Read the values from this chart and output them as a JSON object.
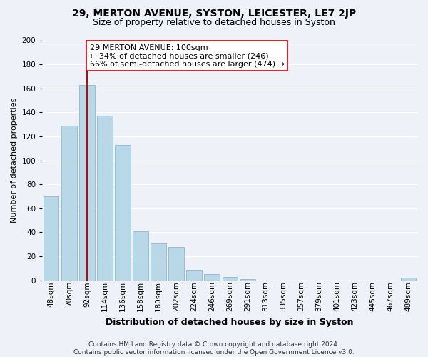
{
  "title": "29, MERTON AVENUE, SYSTON, LEICESTER, LE7 2JP",
  "subtitle": "Size of property relative to detached houses in Syston",
  "xlabel": "Distribution of detached houses by size in Syston",
  "ylabel": "Number of detached properties",
  "bar_labels": [
    "48sqm",
    "70sqm",
    "92sqm",
    "114sqm",
    "136sqm",
    "158sqm",
    "180sqm",
    "202sqm",
    "224sqm",
    "246sqm",
    "269sqm",
    "291sqm",
    "313sqm",
    "335sqm",
    "357sqm",
    "379sqm",
    "401sqm",
    "423sqm",
    "445sqm",
    "467sqm",
    "489sqm"
  ],
  "bar_values": [
    70,
    129,
    163,
    137,
    113,
    41,
    31,
    28,
    9,
    5,
    3,
    1,
    0,
    0,
    0,
    0,
    0,
    0,
    0,
    0,
    2
  ],
  "bar_color": "#b8d8e8",
  "bar_edge_color": "#8ab8ce",
  "vline_x_index": 2,
  "vline_color": "#cc0000",
  "annotation_line1": "29 MERTON AVENUE: 100sqm",
  "annotation_line2": "← 34% of detached houses are smaller (246)",
  "annotation_line3": "66% of semi-detached houses are larger (474) →",
  "ylim": [
    0,
    200
  ],
  "yticks": [
    0,
    20,
    40,
    60,
    80,
    100,
    120,
    140,
    160,
    180,
    200
  ],
  "footer_line1": "Contains HM Land Registry data © Crown copyright and database right 2024.",
  "footer_line2": "Contains public sector information licensed under the Open Government Licence v3.0.",
  "background_color": "#eef2f8",
  "grid_color": "#ffffff",
  "title_fontsize": 10,
  "subtitle_fontsize": 9,
  "xlabel_fontsize": 9,
  "ylabel_fontsize": 8,
  "tick_fontsize": 7.5,
  "annotation_fontsize": 8
}
